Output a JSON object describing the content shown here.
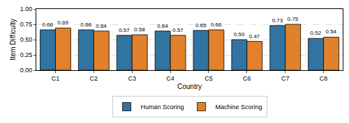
{
  "chart_data": {
    "type": "bar",
    "x_label": "Country",
    "y_label": "Item Difficulty",
    "categories": [
      "C1",
      "C2",
      "C3",
      "C4",
      "C5",
      "C6",
      "C7",
      "C8"
    ],
    "series": [
      {
        "name": "Human Scoring",
        "color": "#3274a1",
        "values": [
          0.66,
          0.66,
          0.57,
          0.64,
          0.65,
          0.5,
          0.73,
          0.52
        ],
        "value_labels": [
          "0.66",
          "0.66",
          "0.57",
          "0.64",
          "0.65",
          "0.50",
          "0.73",
          "0.52"
        ]
      },
      {
        "name": "Machine Scoring",
        "color": "#e1812c",
        "values": [
          0.69,
          0.64,
          0.58,
          0.57,
          0.66,
          0.47,
          0.75,
          0.54
        ],
        "value_labels": [
          "0.69",
          "0.64",
          "0.58",
          "0.57",
          "0.66",
          "0.47",
          "0.75",
          "0.54"
        ]
      }
    ],
    "ylim": [
      0,
      1
    ],
    "yticks": [
      {
        "value": 0,
        "label": "0.00"
      },
      {
        "value": 0.25,
        "label": "0.25"
      },
      {
        "value": 0.5,
        "label": "0.50"
      },
      {
        "value": 0.75,
        "label": "0.75"
      },
      {
        "value": 1,
        "label": "1.00"
      }
    ],
    "grid": true,
    "legend": "bottom",
    "data_labels": true
  }
}
